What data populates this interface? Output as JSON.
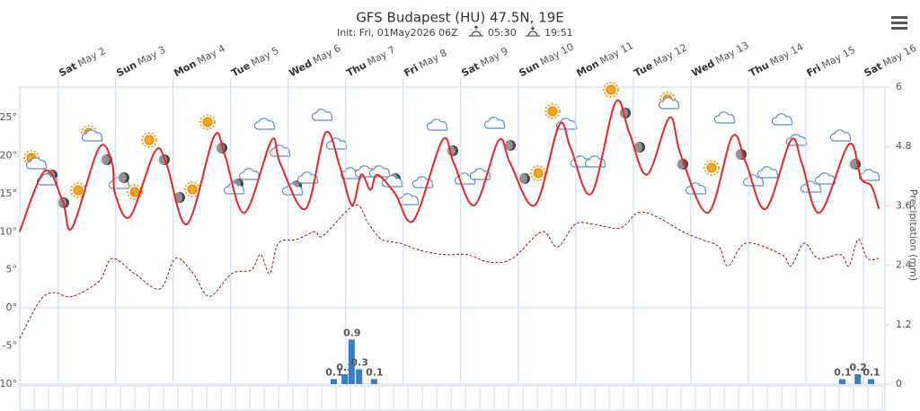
{
  "chart_data": {
    "type": "line",
    "title": "GFS Budapest (HU) 47.5N, 19E",
    "subtitle": "Init: Fri, 01May2026 06Z",
    "sunrise": "05:30",
    "sunset": "19:51",
    "y2_label": "Precipitation (mm)",
    "xlim": [
      0.333,
      15.375
    ],
    "xticks": [
      {
        "value": 1,
        "label": "Sat"
      },
      {
        "value": 2,
        "label": "Sun"
      },
      {
        "value": 3,
        "label": "Mon"
      },
      {
        "value": 4,
        "label": "Tue"
      },
      {
        "value": 5,
        "label": "Wed"
      },
      {
        "value": 6,
        "label": "Thu"
      },
      {
        "value": 7,
        "label": "Fri"
      },
      {
        "value": 8,
        "label": "Sat"
      },
      {
        "value": 9,
        "label": "Sun"
      },
      {
        "value": 10,
        "label": "Mon"
      },
      {
        "value": 11,
        "label": "Tue"
      },
      {
        "value": 12,
        "label": "Wed"
      },
      {
        "value": 13,
        "label": "Thu"
      },
      {
        "value": 14,
        "label": "Fri"
      },
      {
        "value": 15,
        "label": "Sat"
      }
    ],
    "xtick_dates": [
      "May 2",
      "May 3",
      "May 4",
      "May 5",
      "May 6",
      "May 7",
      "May 8",
      "May 9",
      "May 10",
      "May 11",
      "May 12",
      "May 13",
      "May 14",
      "May 15",
      "May 16"
    ],
    "ylim": [
      -10,
      29
    ],
    "yticks": [
      {
        "value": -10,
        "label": "-10°"
      },
      {
        "value": -5,
        "label": "-5°"
      },
      {
        "value": 0,
        "label": "0°"
      },
      {
        "value": 5,
        "label": "5°"
      },
      {
        "value": 10,
        "label": "10°"
      },
      {
        "value": 15,
        "label": "15°"
      },
      {
        "value": 20,
        "label": "20°"
      },
      {
        "value": 25,
        "label": "25°"
      }
    ],
    "y2lim": [
      0,
      6
    ],
    "y2ticks": [
      0,
      1.2,
      2.4,
      3.6,
      4.8,
      6
    ],
    "series": [
      {
        "color": "#e8262b",
        "style": "solid",
        "x": [
          0.33,
          0.77,
          1.08,
          1.24,
          1.71,
          1.94,
          1.99,
          2.25,
          2.68,
          2.88,
          3.24,
          3.71,
          3.9,
          4.24,
          4.71,
          4.86,
          5.3,
          5.65,
          5.9,
          6.11,
          6.27,
          6.43,
          6.55,
          6.86,
          7.18,
          7.68,
          7.88,
          8.24,
          8.66,
          8.86,
          9.29,
          9.71,
          9.91,
          10.27,
          10.69,
          10.93,
          11.24,
          11.63,
          11.83,
          12.3,
          12.72,
          12.96,
          13.3,
          13.74,
          13.93,
          14.24,
          14.75,
          14.96,
          15.14,
          15.27
        ],
        "values": [
          10,
          18,
          14,
          10.5,
          21,
          19,
          15,
          12,
          20.5,
          19,
          11,
          22.5,
          20,
          12.5,
          22,
          19,
          13,
          23,
          18.5,
          13.5,
          17.5,
          15.5,
          17.5,
          15,
          11.5,
          22,
          19,
          13.5,
          22,
          19,
          13.5,
          24,
          21,
          15,
          27,
          23,
          17.5,
          25,
          20,
          12.5,
          22.5,
          19,
          13,
          22,
          19,
          12.5,
          21.5,
          17,
          16,
          13
        ]
      },
      {
        "color": "#8b1a1a",
        "style": "dashed",
        "x": [
          0.33,
          0.69,
          0.93,
          1.24,
          1.71,
          1.94,
          2.33,
          2.77,
          3.04,
          3.35,
          3.63,
          4.02,
          4.36,
          4.52,
          4.68,
          4.83,
          5.15,
          5.46,
          5.61,
          6.16,
          6.4,
          6.63,
          6.94,
          7.33,
          7.72,
          8.11,
          8.5,
          8.9,
          9.41,
          9.68,
          9.99,
          10.3,
          10.77,
          11.08,
          11.4,
          11.86,
          12.18,
          12.49,
          12.65,
          12.96,
          13.58,
          13.74,
          13.97,
          14.21,
          14.6,
          14.75,
          14.91,
          15.07,
          15.27
        ],
        "values": [
          -4,
          1,
          2,
          1.5,
          3.5,
          6.5,
          4.5,
          2.5,
          6.5,
          4.5,
          1.5,
          4.5,
          5,
          7,
          4.5,
          8.5,
          9,
          10,
          9.5,
          13.5,
          11,
          9,
          8.5,
          7.5,
          7,
          7,
          6,
          6.5,
          10,
          8,
          11,
          11,
          10.5,
          12.5,
          12,
          10,
          9,
          8,
          5.5,
          8.5,
          7,
          5.5,
          8.5,
          6.5,
          7,
          5.5,
          9,
          6.5,
          6.5
        ]
      },
      {
        "type": "bar",
        "axis": "y2",
        "color": "#3a7dc0",
        "x": [
          5.8,
          5.99,
          6.11,
          6.24,
          6.5,
          14.64,
          14.91,
          15.14
        ],
        "values": [
          0.1,
          0.2,
          0.9,
          0.3,
          0.1,
          0.1,
          0.2,
          0.1
        ]
      }
    ]
  }
}
